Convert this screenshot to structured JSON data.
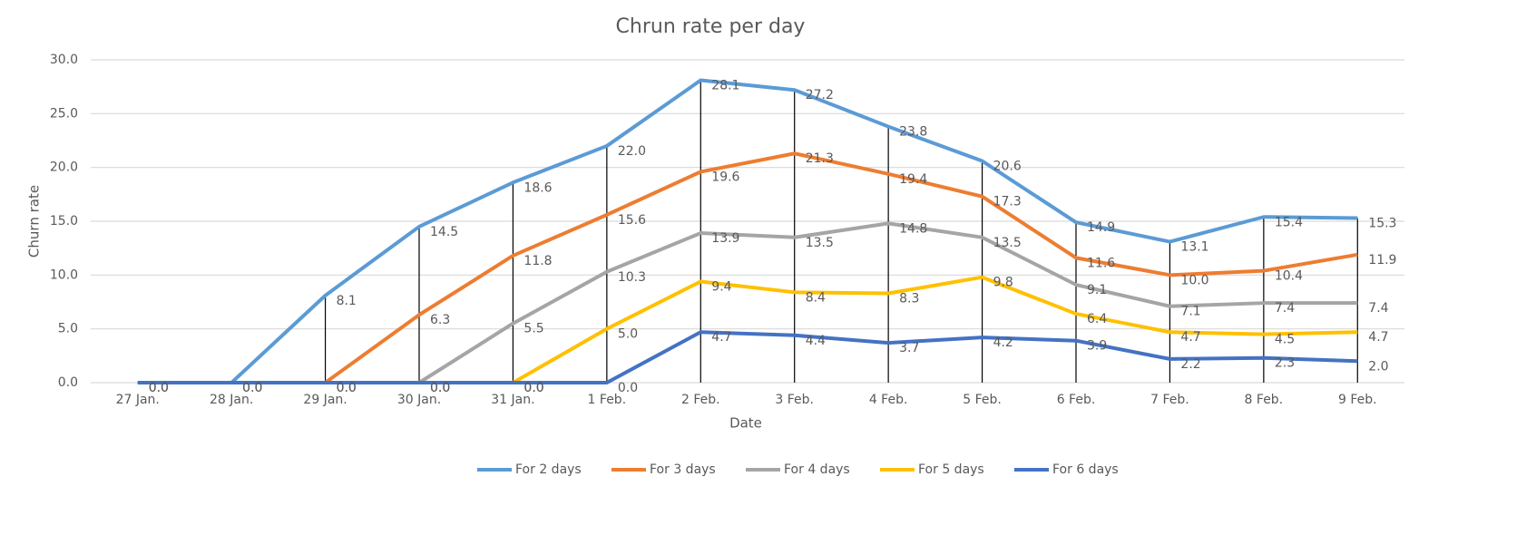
{
  "chart_data": {
    "type": "line",
    "title": "Chrun rate per day",
    "x_label": "Date",
    "y_label": "Churn rate",
    "categories": [
      "27 Jan.",
      "28 Jan.",
      "29 Jan.",
      "30 Jan.",
      "31 Jan.",
      "1 Feb.",
      "2 Feb.",
      "3 Feb.",
      "4 Feb.",
      "5 Feb.",
      "6 Feb.",
      "7 Feb.",
      "8 Feb.",
      "9 Feb."
    ],
    "series": [
      {
        "name": "For 2 days",
        "color": "#5b9bd5",
        "values": [
          0,
          0,
          8.1,
          14.5,
          18.6,
          22.0,
          28.1,
          27.2,
          23.8,
          20.6,
          14.9,
          13.1,
          15.4,
          15.3
        ],
        "value_labels": [
          "0.0",
          "0.0",
          "8.1",
          "14.5",
          "18.6",
          "22.0",
          "28.1",
          "27.2",
          "23.8",
          "20.6",
          "14.9",
          "13.1",
          "15.4",
          "15.3"
        ]
      },
      {
        "name": "For 3 days",
        "color": "#ed7d31",
        "values": [
          null,
          null,
          0,
          6.3,
          11.8,
          15.6,
          19.6,
          21.3,
          19.4,
          17.3,
          11.6,
          10.0,
          10.4,
          11.9
        ],
        "value_labels": [
          null,
          null,
          "0.0",
          "6.3",
          "11.8",
          "15.6",
          "19.6",
          "21.3",
          "19.4",
          "17.3",
          "11.6",
          "10.0",
          "10.4",
          "11.9"
        ]
      },
      {
        "name": "For 4 days",
        "color": "#a5a5a5",
        "values": [
          null,
          null,
          null,
          0,
          5.5,
          10.3,
          13.9,
          13.5,
          14.8,
          13.5,
          9.1,
          7.1,
          7.4,
          7.4
        ],
        "value_labels": [
          null,
          null,
          null,
          "0.0",
          "5.5",
          "10.3",
          "13.9",
          "13.5",
          "14.8",
          "13.5",
          "9.1",
          "7.1",
          "7.4",
          "7.4"
        ]
      },
      {
        "name": "For 5 days",
        "color": "#ffc000",
        "values": [
          null,
          null,
          null,
          null,
          0,
          5.0,
          9.4,
          8.4,
          8.3,
          9.8,
          6.4,
          4.7,
          4.5,
          4.7
        ],
        "value_labels": [
          null,
          null,
          null,
          null,
          "0.0",
          "5.0",
          "9.4",
          "8.4",
          "8.3",
          "9.8",
          "6.4",
          "4.7",
          "4.5",
          "4.7"
        ]
      },
      {
        "name": "For 6 days",
        "color": "#4472c4",
        "values": [
          0,
          0,
          0,
          0,
          0,
          0,
          4.7,
          4.4,
          3.7,
          4.2,
          3.9,
          2.2,
          2.3,
          2.0
        ],
        "value_labels": [
          "0.0",
          "0.0",
          "0.0",
          "0.0",
          "0.0",
          "0.0",
          "4.7",
          "4.4",
          "3.7",
          "4.2",
          "3.9",
          "2.2",
          "2.3",
          "2.0"
        ]
      }
    ],
    "ylim": [
      0,
      30
    ],
    "yticks": [
      {
        "value": 0,
        "label": "0.0"
      },
      {
        "value": 5,
        "label": "5.0"
      },
      {
        "value": 10,
        "label": "10.0"
      },
      {
        "value": 15,
        "label": "15.0"
      },
      {
        "value": 20,
        "label": "20.0"
      },
      {
        "value": 25,
        "label": "25.0"
      },
      {
        "value": 30,
        "label": "30.0"
      }
    ],
    "grid": true,
    "drop_lines": true,
    "legend": "bottom"
  }
}
